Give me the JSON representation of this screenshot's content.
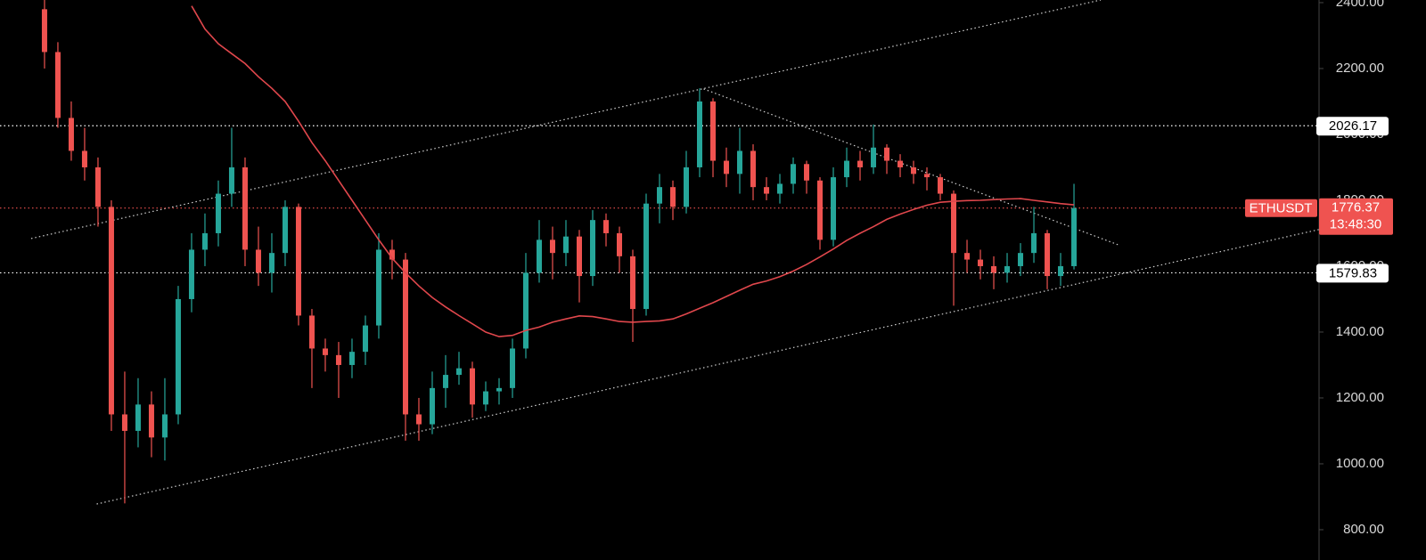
{
  "chart_data": {
    "type": "candlestick",
    "symbol": "ETHUSDT",
    "countdown": "13:48:30",
    "up_color": "#26a69a",
    "down_color": "#ef5350",
    "xlim": [
      -3.33,
      95.33
    ],
    "ylim": [
      708,
      2408
    ],
    "yticks": [
      {
        "value": 800,
        "label": "800.00"
      },
      {
        "value": 1000,
        "label": "1000.00"
      },
      {
        "value": 1200,
        "label": "1200.00"
      },
      {
        "value": 1400,
        "label": "1400.00"
      },
      {
        "value": 1600,
        "label": "1600.00"
      },
      {
        "value": 1800,
        "label": "1800.00"
      },
      {
        "value": 2000,
        "label": "2000.00"
      },
      {
        "value": 2200,
        "label": "2200.00"
      },
      {
        "value": 2400,
        "label": "2400.00"
      }
    ],
    "open": [
      2380,
      2250,
      2050,
      1950,
      1900,
      1780,
      1150,
      1100,
      1180,
      1080,
      1150,
      1500,
      1650,
      1700,
      1820,
      1900,
      1650,
      1580,
      1640,
      1780,
      1450,
      1350,
      1330,
      1300,
      1340,
      1420,
      1650,
      1620,
      1150,
      1120,
      1230,
      1270,
      1290,
      1180,
      1220,
      1230,
      1350,
      1580,
      1680,
      1640,
      1690,
      1570,
      1740,
      1700,
      1630,
      1470,
      1790,
      1840,
      1780,
      1900,
      2100,
      1920,
      1880,
      1950,
      1840,
      1820,
      1850,
      1910,
      1860,
      1680,
      1870,
      1920,
      1900,
      1960,
      1920,
      1900,
      1880,
      1870,
      1820,
      1640,
      1620,
      1600,
      1580,
      1600,
      1640,
      1700,
      1570,
      1600
    ],
    "high": [
      2408,
      2280,
      2100,
      2020,
      1930,
      1800,
      1280,
      1260,
      1220,
      1260,
      1540,
      1700,
      1760,
      1860,
      2020,
      1930,
      1720,
      1700,
      1800,
      1790,
      1470,
      1380,
      1370,
      1380,
      1450,
      1700,
      1680,
      1640,
      1200,
      1280,
      1330,
      1340,
      1310,
      1250,
      1260,
      1380,
      1640,
      1740,
      1720,
      1740,
      1710,
      1770,
      1760,
      1720,
      1650,
      1820,
      1880,
      1860,
      1950,
      2140,
      2110,
      1960,
      2020,
      1970,
      1870,
      1880,
      1930,
      1920,
      1870,
      1900,
      1960,
      1950,
      2030,
      1970,
      1940,
      1920,
      1900,
      1880,
      1830,
      1680,
      1650,
      1630,
      1640,
      1670,
      1780,
      1710,
      1640,
      1850
    ],
    "low": [
      2200,
      2020,
      1920,
      1860,
      1720,
      1100,
      880,
      1050,
      1020,
      1010,
      1120,
      1460,
      1600,
      1660,
      1780,
      1600,
      1540,
      1520,
      1600,
      1420,
      1230,
      1280,
      1200,
      1260,
      1300,
      1380,
      1560,
      1070,
      1070,
      1090,
      1170,
      1240,
      1140,
      1160,
      1180,
      1200,
      1320,
      1550,
      1560,
      1600,
      1490,
      1540,
      1660,
      1580,
      1370,
      1450,
      1730,
      1740,
      1760,
      1870,
      1870,
      1840,
      1820,
      1800,
      1800,
      1790,
      1820,
      1820,
      1650,
      1660,
      1840,
      1860,
      1880,
      1880,
      1870,
      1850,
      1830,
      1800,
      1480,
      1580,
      1560,
      1530,
      1550,
      1570,
      1610,
      1530,
      1540,
      1590
    ],
    "close": [
      2250,
      2050,
      1950,
      1900,
      1780,
      1150,
      1100,
      1180,
      1080,
      1150,
      1500,
      1650,
      1700,
      1820,
      1900,
      1650,
      1580,
      1640,
      1780,
      1450,
      1350,
      1330,
      1300,
      1340,
      1420,
      1650,
      1620,
      1150,
      1120,
      1230,
      1270,
      1290,
      1180,
      1220,
      1230,
      1350,
      1580,
      1680,
      1640,
      1690,
      1570,
      1740,
      1700,
      1630,
      1470,
      1790,
      1840,
      1780,
      1900,
      2100,
      1920,
      1880,
      1950,
      1840,
      1820,
      1850,
      1910,
      1860,
      1680,
      1870,
      1920,
      1900,
      1960,
      1920,
      1900,
      1880,
      1870,
      1820,
      1640,
      1620,
      1600,
      1580,
      1600,
      1640,
      1700,
      1570,
      1600,
      1776.37
    ],
    "moving_average": {
      "color": "#e0474c",
      "values": [
        null,
        null,
        null,
        null,
        null,
        null,
        null,
        null,
        null,
        null,
        null,
        2390,
        2320,
        2275,
        2245,
        2215,
        2175,
        2140,
        2100,
        2040,
        1975,
        1920,
        1860,
        1800,
        1740,
        1680,
        1624,
        1580,
        1540,
        1505,
        1476,
        1450,
        1425,
        1400,
        1386,
        1390,
        1405,
        1415,
        1430,
        1440,
        1449,
        1447,
        1440,
        1432,
        1430,
        1432,
        1434,
        1440,
        1455,
        1472,
        1489,
        1508,
        1527,
        1545,
        1555,
        1568,
        1585,
        1605,
        1628,
        1652,
        1678,
        1700,
        1720,
        1742,
        1758,
        1772,
        1785,
        1794,
        1797,
        1799,
        1800,
        1802,
        1804,
        1805,
        1800,
        1795,
        1790,
        1786
      ]
    },
    "trendlines": [
      {
        "x": [
          -1,
          79
        ],
        "y": [
          1684,
          2408
        ]
      },
      {
        "x": [
          3.9,
          95.3
        ],
        "y": [
          878,
          1711
        ]
      },
      {
        "x": [
          49.3,
          80.3
        ],
        "y": [
          2138,
          1665
        ]
      }
    ],
    "price_lines": [
      {
        "value": 2026.17,
        "color": "#ffffff"
      },
      {
        "value": 1776.37,
        "color": "#ef5350"
      },
      {
        "value": 1579.83,
        "color": "#ffffff"
      }
    ]
  }
}
